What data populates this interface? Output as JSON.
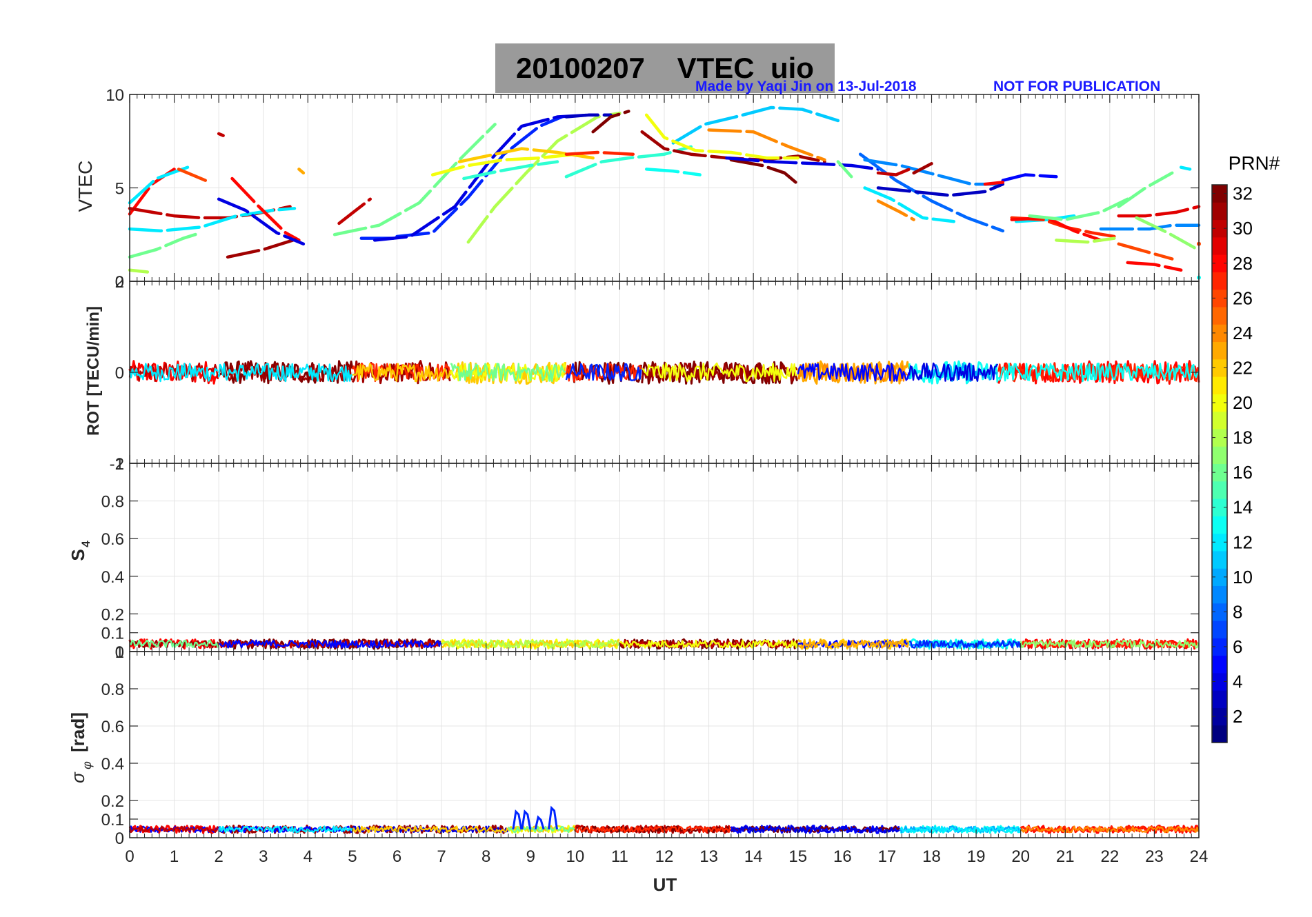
{
  "header": {
    "date": "20100207",
    "quantity": "VTEC",
    "station": "uio",
    "credit": "Made by Yaqi Jin on 13-Jul-2018",
    "notice": "NOT FOR PUBLICATION"
  },
  "colors": {
    "grid": "#e4e4e4",
    "axis": "#262626",
    "title_bg": "#9a9a9a",
    "credit": "#1a1aff"
  },
  "chart_data": [
    {
      "type": "line",
      "panel": "vtec",
      "ylabel": "VTEC",
      "ylim": [
        0,
        10
      ],
      "yticks": [
        0,
        5,
        10
      ],
      "xlim": [
        0,
        24
      ],
      "series": [
        {
          "prn": 28,
          "x": [
            0.0,
            0.5,
            1.0
          ],
          "y": [
            3.6,
            5.2,
            6.0
          ]
        },
        {
          "prn": 12,
          "x": [
            0.0,
            0.6,
            1.3
          ],
          "y": [
            4.2,
            5.5,
            6.1
          ]
        },
        {
          "prn": 30,
          "x": [
            0.0,
            0.5,
            1.0,
            1.6,
            2.2,
            2.8,
            3.6
          ],
          "y": [
            3.9,
            3.7,
            3.5,
            3.4,
            3.4,
            3.6,
            4.0
          ]
        },
        {
          "prn": 12,
          "x": [
            0.0,
            0.7,
            1.6,
            2.4,
            3.2,
            3.7
          ],
          "y": [
            2.8,
            2.7,
            2.9,
            3.5,
            3.8,
            3.9
          ]
        },
        {
          "prn": 16,
          "x": [
            0.0,
            0.6,
            1.2,
            1.6
          ],
          "y": [
            1.3,
            1.7,
            2.3,
            2.6
          ]
        },
        {
          "prn": 18,
          "x": [
            0.0,
            0.4
          ],
          "y": [
            0.6,
            0.5
          ]
        },
        {
          "prn": 26,
          "x": [
            1.1,
            1.3,
            1.7
          ],
          "y": [
            6.0,
            5.8,
            5.4
          ]
        },
        {
          "prn": 30,
          "x": [
            2.0,
            2.1
          ],
          "y": [
            7.9,
            7.8
          ]
        },
        {
          "prn": 28,
          "x": [
            2.3,
            2.9,
            3.5,
            3.8
          ],
          "y": [
            5.5,
            4.0,
            2.6,
            2.2
          ]
        },
        {
          "prn": 31,
          "x": [
            2.2,
            3.0,
            3.8
          ],
          "y": [
            1.3,
            1.7,
            2.3
          ]
        },
        {
          "prn": 4,
          "x": [
            2.0,
            2.6,
            3.3,
            3.9
          ],
          "y": [
            4.4,
            3.8,
            2.6,
            2.0
          ]
        },
        {
          "prn": 23,
          "x": [
            3.8,
            3.9
          ],
          "y": [
            6.0,
            5.8
          ]
        },
        {
          "prn": 30,
          "x": [
            4.7,
            5.4
          ],
          "y": [
            3.1,
            4.4
          ]
        },
        {
          "prn": 6,
          "x": [
            5.2,
            6.0
          ],
          "y": [
            2.3,
            2.3
          ]
        },
        {
          "prn": 16,
          "x": [
            4.6,
            5.6,
            6.5,
            7.4,
            8.2
          ],
          "y": [
            2.5,
            3.0,
            4.2,
            6.5,
            8.4
          ]
        },
        {
          "prn": 6,
          "x": [
            6.0,
            6.8,
            7.6,
            8.4,
            9.2,
            9.7
          ],
          "y": [
            2.4,
            2.6,
            4.5,
            6.8,
            8.3,
            8.8
          ]
        },
        {
          "prn": 4,
          "x": [
            5.5,
            6.3,
            7.3,
            8.1,
            8.8,
            9.6,
            10.3
          ],
          "y": [
            2.2,
            2.4,
            4.0,
            6.5,
            8.3,
            8.8,
            8.9
          ]
        },
        {
          "prn": 18,
          "x": [
            7.6,
            8.2,
            8.9,
            9.6,
            10.5,
            11.0
          ],
          "y": [
            2.1,
            4.0,
            5.8,
            7.5,
            8.8,
            9.0
          ]
        },
        {
          "prn": 22,
          "x": [
            7.4,
            8.0,
            8.8,
            9.6,
            10.4
          ],
          "y": [
            6.4,
            6.7,
            7.1,
            6.9,
            6.6
          ]
        },
        {
          "prn": 20,
          "x": [
            6.8,
            7.6,
            8.4,
            9.2,
            10.0
          ],
          "y": [
            5.7,
            6.2,
            6.5,
            6.6,
            6.8
          ]
        },
        {
          "prn": 14,
          "x": [
            7.5,
            8.3,
            9.0,
            9.6
          ],
          "y": [
            5.5,
            5.9,
            6.2,
            6.4
          ]
        },
        {
          "prn": 3,
          "x": [
            9.8,
            10.3,
            10.8
          ],
          "y": [
            8.8,
            8.9,
            8.9
          ]
        },
        {
          "prn": 32,
          "x": [
            10.4,
            10.8,
            11.2
          ],
          "y": [
            8.0,
            8.8,
            9.1
          ]
        },
        {
          "prn": 27,
          "x": [
            9.8,
            10.5,
            11.3
          ],
          "y": [
            6.8,
            6.9,
            6.8
          ]
        },
        {
          "prn": 14,
          "x": [
            9.8,
            10.6,
            11.2,
            12.0,
            12.6
          ],
          "y": [
            5.6,
            6.4,
            6.6,
            6.8,
            7.2
          ]
        },
        {
          "prn": 11,
          "x": [
            12.2,
            12.9,
            13.6,
            14.4,
            15.1,
            15.9
          ],
          "y": [
            7.4,
            8.4,
            8.8,
            9.3,
            9.2,
            8.6
          ]
        },
        {
          "prn": 31,
          "x": [
            11.5,
            12.0,
            12.6,
            13.4,
            14.2,
            15.0,
            15.6
          ],
          "y": [
            8.0,
            7.1,
            6.8,
            6.6,
            6.5,
            6.7,
            6.4
          ]
        },
        {
          "prn": 13,
          "x": [
            11.6,
            12.2,
            12.8
          ],
          "y": [
            6.0,
            5.9,
            5.7
          ]
        },
        {
          "prn": 20,
          "x": [
            11.6,
            12.0,
            12.7,
            13.5,
            14.3,
            15.0
          ],
          "y": [
            8.9,
            7.7,
            7.0,
            6.9,
            6.6,
            6.6
          ]
        },
        {
          "prn": 24,
          "x": [
            13.0,
            14.0,
            14.8,
            15.6
          ],
          "y": [
            8.1,
            8.0,
            7.2,
            6.5
          ]
        },
        {
          "prn": 32,
          "x": [
            13.5,
            14.2,
            14.7,
            15.0
          ],
          "y": [
            6.5,
            6.2,
            5.8,
            5.2
          ]
        },
        {
          "prn": 4,
          "x": [
            13.4,
            14.4,
            15.4,
            16.2,
            16.8
          ],
          "y": [
            6.6,
            6.4,
            6.3,
            6.2,
            6.0
          ]
        },
        {
          "prn": 16,
          "x": [
            15.9,
            16.2
          ],
          "y": [
            6.4,
            5.6
          ]
        },
        {
          "prn": 8,
          "x": [
            16.4,
            17.2,
            18.0,
            18.8,
            19.6
          ],
          "y": [
            6.8,
            5.4,
            4.3,
            3.4,
            2.7
          ]
        },
        {
          "prn": 9,
          "x": [
            16.5,
            17.3,
            18.1,
            18.9,
            19.6
          ],
          "y": [
            6.5,
            6.2,
            5.7,
            5.2,
            5.2
          ]
        },
        {
          "prn": 12,
          "x": [
            16.5,
            17.1,
            17.8,
            18.5
          ],
          "y": [
            5.0,
            4.4,
            3.4,
            3.2
          ]
        },
        {
          "prn": 3,
          "x": [
            16.8,
            17.6,
            18.4,
            19.2,
            19.6
          ],
          "y": [
            5.0,
            4.8,
            4.6,
            4.8,
            5.2
          ]
        },
        {
          "prn": 30,
          "x": [
            16.8,
            17.2,
            17.5
          ],
          "y": [
            5.8,
            5.7,
            6.0
          ]
        },
        {
          "prn": 31,
          "x": [
            17.6,
            18.0
          ],
          "y": [
            5.8,
            6.3
          ]
        },
        {
          "prn": 24,
          "x": [
            16.8,
            17.3,
            17.6
          ],
          "y": [
            4.3,
            3.7,
            3.3
          ]
        },
        {
          "prn": 5,
          "x": [
            19.6,
            20.1,
            20.8
          ],
          "y": [
            5.4,
            5.7,
            5.6
          ]
        },
        {
          "prn": 28,
          "x": [
            19.2,
            19.6
          ],
          "y": [
            5.2,
            5.3
          ]
        },
        {
          "prn": 12,
          "x": [
            19.9,
            20.6,
            21.2
          ],
          "y": [
            3.2,
            3.3,
            3.5
          ]
        },
        {
          "prn": 27,
          "x": [
            19.8,
            20.5,
            21.0,
            21.6,
            22.1
          ],
          "y": [
            3.4,
            3.3,
            2.9,
            2.6,
            2.4
          ]
        },
        {
          "prn": 28,
          "x": [
            19.8,
            20.6,
            21.2,
            21.8
          ],
          "y": [
            3.3,
            3.4,
            2.7,
            2.2
          ]
        },
        {
          "prn": 16,
          "x": [
            20.2,
            21.0,
            21.8,
            22.4
          ],
          "y": [
            3.5,
            3.3,
            3.7,
            4.4
          ]
        },
        {
          "prn": 18,
          "x": [
            20.8,
            21.5,
            22.1
          ],
          "y": [
            2.2,
            2.1,
            2.3
          ]
        },
        {
          "prn": 9,
          "x": [
            21.8,
            22.4,
            22.9,
            23.4,
            24.0
          ],
          "y": [
            2.8,
            2.8,
            2.8,
            3.0,
            3.0
          ]
        },
        {
          "prn": 16,
          "x": [
            22.2,
            22.8,
            23.4
          ],
          "y": [
            4.0,
            5.0,
            5.8
          ]
        },
        {
          "prn": 26,
          "x": [
            22.2,
            22.8,
            23.4
          ],
          "y": [
            2.0,
            1.6,
            1.2
          ]
        },
        {
          "prn": 28,
          "x": [
            22.4,
            23.0,
            23.6
          ],
          "y": [
            1.0,
            0.9,
            0.6
          ]
        },
        {
          "prn": 29,
          "x": [
            22.2,
            22.8,
            23.5,
            24.0
          ],
          "y": [
            3.5,
            3.5,
            3.7,
            4.0
          ]
        },
        {
          "prn": 17,
          "x": [
            22.6,
            23.3,
            23.9
          ],
          "y": [
            3.4,
            2.6,
            1.8
          ]
        },
        {
          "prn": 12,
          "x": [
            23.6,
            23.8
          ],
          "y": [
            6.1,
            6.0
          ]
        },
        {
          "prn": 13,
          "x": [
            24.0
          ],
          "y": [
            0.2
          ]
        },
        {
          "prn": 26,
          "x": [
            24.0
          ],
          "y": [
            2.0
          ]
        }
      ]
    },
    {
      "type": "line",
      "panel": "rot",
      "ylabel": "ROT [TECU/min]",
      "ylim": [
        -2,
        2
      ],
      "yticks": [
        -2,
        0,
        2
      ],
      "xlim": [
        0,
        24
      ],
      "noise_amplitude": 0.25,
      "segments": [
        {
          "start": 0.0,
          "end": 2.0,
          "prns": [
            28,
            30,
            12
          ]
        },
        {
          "start": 2.0,
          "end": 5.0,
          "prns": [
            32,
            31,
            12
          ]
        },
        {
          "start": 5.0,
          "end": 7.2,
          "prns": [
            31,
            27,
            22
          ]
        },
        {
          "start": 7.2,
          "end": 9.8,
          "prns": [
            22,
            20,
            16
          ]
        },
        {
          "start": 9.8,
          "end": 11.5,
          "prns": [
            32,
            27,
            6
          ]
        },
        {
          "start": 11.5,
          "end": 15.0,
          "prns": [
            32,
            31,
            20
          ]
        },
        {
          "start": 15.0,
          "end": 17.5,
          "prns": [
            23,
            24,
            5
          ]
        },
        {
          "start": 17.5,
          "end": 19.5,
          "prns": [
            13,
            10,
            4
          ]
        },
        {
          "start": 19.5,
          "end": 24.0,
          "prns": [
            28,
            27,
            13
          ]
        }
      ]
    },
    {
      "type": "line",
      "panel": "s4",
      "ylabel": "S4",
      "ylim": [
        0,
        1
      ],
      "yticks": [
        0,
        0.1,
        0.2,
        0.4,
        0.6,
        0.8,
        1
      ],
      "xlim": [
        0,
        24
      ],
      "baseline": 0.04,
      "noise_amplitude": 0.025,
      "segments": [
        {
          "start": 0.0,
          "end": 2.0,
          "prns": [
            28,
            31,
            16
          ]
        },
        {
          "start": 2.0,
          "end": 7.0,
          "prns": [
            32,
            30,
            5
          ]
        },
        {
          "start": 7.0,
          "end": 11.0,
          "prns": [
            20,
            22,
            18
          ]
        },
        {
          "start": 11.0,
          "end": 15.0,
          "prns": [
            32,
            30,
            20
          ]
        },
        {
          "start": 15.0,
          "end": 17.5,
          "prns": [
            22,
            5,
            23
          ]
        },
        {
          "start": 17.5,
          "end": 20.0,
          "prns": [
            13,
            10,
            6
          ]
        },
        {
          "start": 20.0,
          "end": 24.0,
          "prns": [
            28,
            27,
            17
          ]
        }
      ]
    },
    {
      "type": "line",
      "panel": "sigma_phi",
      "ylabel": "σφ [rad]",
      "ylim": [
        0,
        1
      ],
      "yticks": [
        0,
        0.1,
        0.2,
        0.4,
        0.6,
        0.8,
        1
      ],
      "xlim": [
        0,
        24
      ],
      "baseline": 0.045,
      "noise_amplitude": 0.02,
      "spikes": [
        {
          "x": 8.7,
          "y": 0.14,
          "prn": 6
        },
        {
          "x": 8.9,
          "y": 0.14,
          "prn": 6
        },
        {
          "x": 9.2,
          "y": 0.11,
          "prn": 6
        },
        {
          "x": 9.5,
          "y": 0.16,
          "prn": 6
        }
      ],
      "segments": [
        {
          "start": 0.0,
          "end": 2.0,
          "prns": [
            28,
            5,
            30
          ]
        },
        {
          "start": 2.0,
          "end": 5.0,
          "prns": [
            31,
            5,
            12
          ]
        },
        {
          "start": 5.0,
          "end": 8.5,
          "prns": [
            31,
            4,
            22
          ]
        },
        {
          "start": 8.5,
          "end": 10.0,
          "prns": [
            20,
            22,
            16
          ]
        },
        {
          "start": 10.0,
          "end": 13.5,
          "prns": [
            30,
            32,
            27
          ]
        },
        {
          "start": 13.5,
          "end": 17.3,
          "prns": [
            5,
            32,
            4
          ]
        },
        {
          "start": 17.3,
          "end": 20.0,
          "prns": [
            13,
            10,
            12
          ]
        },
        {
          "start": 20.0,
          "end": 24.0,
          "prns": [
            28,
            27,
            24
          ]
        }
      ]
    }
  ],
  "x_axis": {
    "label": "UT",
    "ticks": [
      0,
      1,
      2,
      3,
      4,
      5,
      6,
      7,
      8,
      9,
      10,
      11,
      12,
      13,
      14,
      15,
      16,
      17,
      18,
      19,
      20,
      21,
      22,
      23,
      24
    ]
  },
  "colorbar": {
    "label": "PRN#",
    "min": 1,
    "max": 32,
    "ticks": [
      2,
      4,
      6,
      8,
      10,
      12,
      14,
      16,
      18,
      20,
      22,
      24,
      26,
      28,
      30,
      32
    ],
    "levels": 32
  },
  "panel_labels": {
    "vtec": "VTEC",
    "rot": "ROT [TECU/min]",
    "s4_main": "S",
    "s4_sub": "4",
    "sigma_main": "σ",
    "sigma_sub": "φ",
    "sigma_unit": "[rad]"
  }
}
